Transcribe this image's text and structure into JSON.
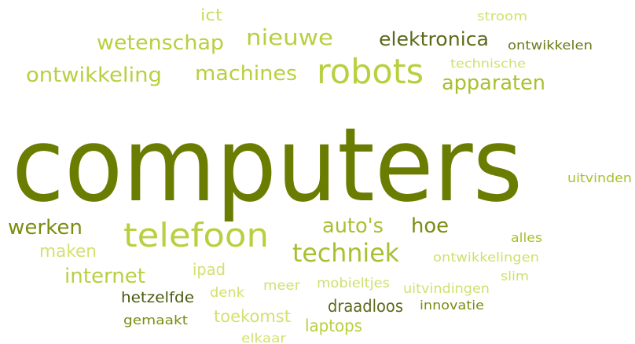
{
  "words": [
    "ict",
    "stroom",
    "wetenschap",
    "nieuwe",
    "elektronica",
    "ontwikkelen",
    "technische",
    "ontwikkeling",
    "machines",
    "robots",
    "apparaten",
    "computers",
    "uitvinden",
    "werken",
    "telefoon",
    "auto's",
    "hoe",
    "alles",
    "maken",
    "techniek",
    "ontwikkelingen",
    "ipad",
    "internet",
    "slim",
    "mobieltjes",
    "meer",
    "denk",
    "uitvindingen",
    "hetzelfde",
    "innovatie",
    "draadloos",
    "gemaakt",
    "toekomst",
    "laptops",
    "elkaar"
  ]
}
